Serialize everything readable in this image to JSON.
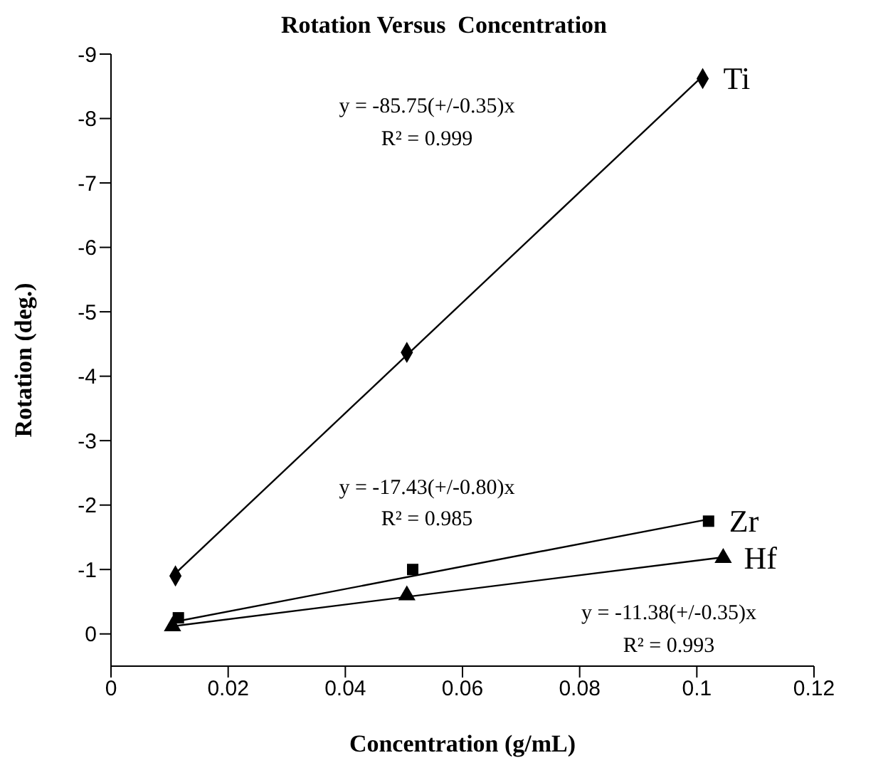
{
  "chart_data": {
    "type": "scatter",
    "title": "Rotation Versus  Concentration",
    "xlabel": "Concentration (g/mL)",
    "ylabel": "Rotation (deg.)",
    "xlim": [
      0,
      0.12
    ],
    "xticks": [
      0,
      0.02,
      0.04,
      0.06,
      0.08,
      0.1,
      0.12
    ],
    "ylim": [
      0.5,
      -9
    ],
    "yticks": [
      0,
      -1,
      -2,
      -3,
      -4,
      -5,
      -6,
      -7,
      -8,
      -9
    ],
    "grid": false,
    "legend": false,
    "series": [
      {
        "name": "Ti",
        "type": "scatter",
        "marker": "diamond",
        "color": "#000000",
        "x": [
          0.011,
          0.0505,
          0.101
        ],
        "values": [
          -0.9,
          -4.37,
          -8.62
        ]
      },
      {
        "name": "Zr",
        "type": "scatter",
        "marker": "square",
        "color": "#000000",
        "x": [
          0.0115,
          0.0515,
          0.102
        ],
        "values": [
          -0.25,
          -1.0,
          -1.75
        ]
      },
      {
        "name": "Hf",
        "type": "scatter",
        "marker": "triangle",
        "color": "#000000",
        "x": [
          0.0105,
          0.0505,
          0.1045
        ],
        "values": [
          -0.12,
          -0.6,
          -1.18
        ]
      },
      {
        "type": "line",
        "marker": "none",
        "color": "#000000",
        "x": [
          0.011,
          0.101
        ],
        "values": [
          -0.94,
          -8.66
        ]
      },
      {
        "type": "line",
        "marker": "none",
        "color": "#000000",
        "x": [
          0.0115,
          0.102
        ],
        "values": [
          -0.2,
          -1.78
        ]
      },
      {
        "type": "line",
        "marker": "none",
        "color": "#000000",
        "x": [
          0.0105,
          0.1045
        ],
        "values": [
          -0.12,
          -1.19
        ]
      }
    ],
    "annotations": [
      "y = -85.75(+/-0.35)x",
      "R² = 0.999",
      "y = -17.43(+/-0.80)x",
      "R² = 0.985",
      "y = -11.38(+/-0.35)x",
      "R² = 0.993"
    ]
  }
}
